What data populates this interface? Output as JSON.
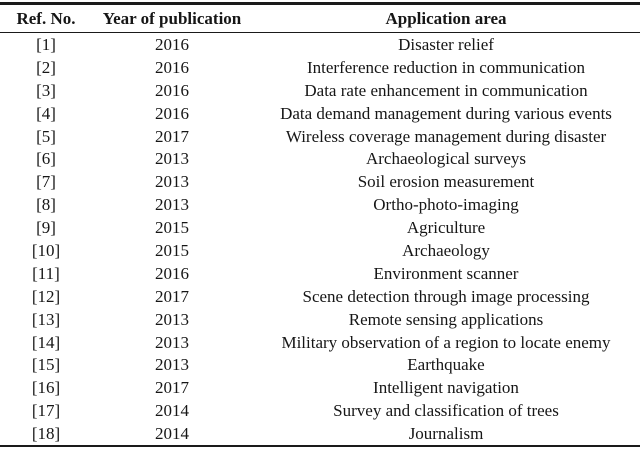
{
  "table": {
    "columns": [
      {
        "label": "Ref. No."
      },
      {
        "label": "Year of publication"
      },
      {
        "label": "Application area"
      }
    ],
    "rows": [
      {
        "ref": "[1]",
        "year": "2016",
        "application": "Disaster relief"
      },
      {
        "ref": "[2]",
        "year": "2016",
        "application": "Interference reduction in communication"
      },
      {
        "ref": "[3]",
        "year": "2016",
        "application": "Data rate enhancement in communication"
      },
      {
        "ref": "[4]",
        "year": "2016",
        "application": "Data demand management during various events"
      },
      {
        "ref": "[5]",
        "year": "2017",
        "application": "Wireless coverage management during disaster"
      },
      {
        "ref": "[6]",
        "year": "2013",
        "application": "Archaeological surveys"
      },
      {
        "ref": "[7]",
        "year": "2013",
        "application": "Soil erosion measurement"
      },
      {
        "ref": "[8]",
        "year": "2013",
        "application": "Ortho-photo-imaging"
      },
      {
        "ref": "[9]",
        "year": "2015",
        "application": "Agriculture"
      },
      {
        "ref": "[10]",
        "year": "2015",
        "application": "Archaeology"
      },
      {
        "ref": "[11]",
        "year": "2016",
        "application": "Environment scanner"
      },
      {
        "ref": "[12]",
        "year": "2017",
        "application": "Scene detection through image processing"
      },
      {
        "ref": "[13]",
        "year": "2013",
        "application": "Remote sensing applications"
      },
      {
        "ref": "[14]",
        "year": "2013",
        "application": "Military observation of a region to locate enemy"
      },
      {
        "ref": "[15]",
        "year": "2013",
        "application": "Earthquake"
      },
      {
        "ref": "[16]",
        "year": "2017",
        "application": "Intelligent navigation"
      },
      {
        "ref": "[17]",
        "year": "2014",
        "application": "Survey and classification of trees"
      },
      {
        "ref": "[18]",
        "year": "2014",
        "application": "Journalism"
      }
    ],
    "colors": {
      "text": "#161616",
      "rule": "#1a1a1a",
      "background": "#ffffff"
    }
  }
}
